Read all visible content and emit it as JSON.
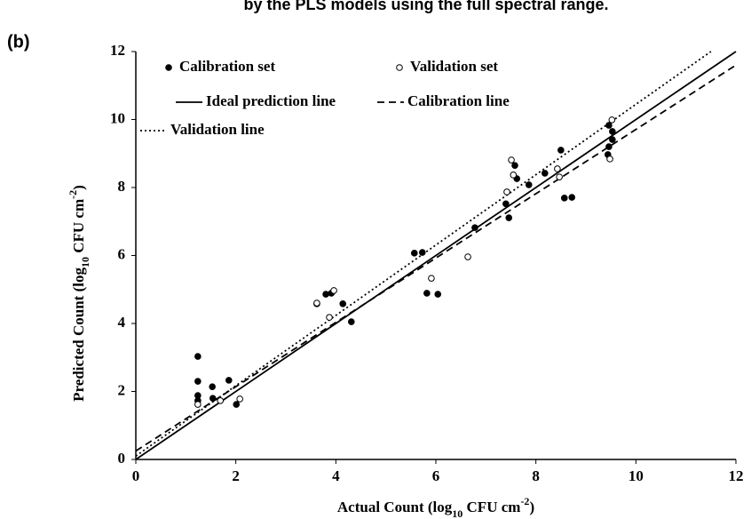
{
  "chart_data": {
    "type": "scatter",
    "title": "by the PLS models using the full spectral range.",
    "panel_label": "(b)",
    "xlabel": [
      "Actual Count (log",
      "10",
      " CFU cm",
      "-2",
      ")"
    ],
    "ylabel": [
      "Predicted Count (log",
      "10",
      " CFU cm",
      "-2",
      ")"
    ],
    "xlim": [
      0,
      12
    ],
    "ylim": [
      0,
      12
    ],
    "xticks": [
      0,
      2,
      4,
      6,
      8,
      10,
      12
    ],
    "yticks": [
      0,
      2,
      4,
      6,
      8,
      10,
      12
    ],
    "series": [
      {
        "name": "Calibration set",
        "marker": "filled",
        "color": "#000000",
        "x": [
          1.24,
          1.24,
          1.24,
          1.24,
          1.53,
          1.54,
          1.86,
          2.01,
          3.62,
          3.8,
          3.91,
          4.14,
          4.31,
          5.57,
          5.73,
          5.82,
          6.04,
          6.78,
          7.4,
          7.46,
          7.58,
          7.62,
          7.86,
          8.18,
          8.5,
          8.57,
          8.72,
          9.44,
          9.46,
          9.46,
          9.53,
          9.53
        ],
        "values": [
          3.03,
          2.3,
          1.88,
          1.73,
          2.14,
          1.8,
          2.33,
          1.62,
          4.58,
          4.86,
          4.89,
          4.58,
          4.05,
          6.07,
          6.09,
          4.89,
          4.86,
          6.82,
          7.52,
          7.11,
          8.65,
          8.26,
          8.08,
          8.42,
          9.1,
          7.69,
          7.71,
          8.97,
          9.83,
          9.2,
          9.65,
          9.41
        ]
      },
      {
        "name": "Validation set",
        "marker": "hollow",
        "color": "#000000",
        "x": [
          1.24,
          1.69,
          2.08,
          3.62,
          3.87,
          3.96,
          5.91,
          6.64,
          7.42,
          7.51,
          7.55,
          8.43,
          8.47,
          9.48,
          9.52
        ],
        "values": [
          1.62,
          1.73,
          1.78,
          4.6,
          4.18,
          4.97,
          5.33,
          5.96,
          7.87,
          8.81,
          8.37,
          8.55,
          8.31,
          8.84,
          9.99
        ]
      }
    ],
    "lines": [
      {
        "name": "Ideal prediction line",
        "style": "solid",
        "color": "#000000",
        "x": [
          0,
          12
        ],
        "values": [
          0,
          12
        ]
      },
      {
        "name": "Calibration line",
        "style": "dashed",
        "color": "#000000",
        "x": [
          0,
          12
        ],
        "values": [
          0.25,
          11.6
        ]
      },
      {
        "name": "Validation line",
        "style": "dotted",
        "color": "#000000",
        "x": [
          0,
          11.5
        ],
        "values": [
          0.1,
          12
        ]
      }
    ]
  }
}
